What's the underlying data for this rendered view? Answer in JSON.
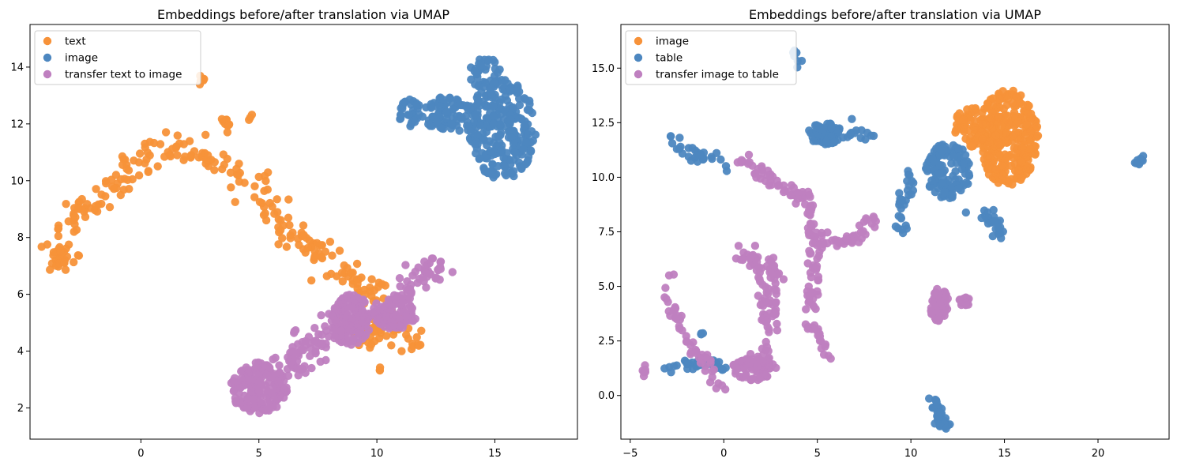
{
  "chart_data": [
    {
      "type": "scatter",
      "title": "Embeddings before/after translation via UMAP",
      "xlabel": "",
      "ylabel": "",
      "xlim": [
        -4.7,
        18.5
      ],
      "ylim": [
        0.9,
        15.5
      ],
      "xticks": [
        0,
        5,
        10,
        15
      ],
      "xtick_labels": [
        "0",
        "5",
        "10",
        "15"
      ],
      "yticks": [
        2,
        4,
        6,
        8,
        10,
        12,
        14
      ],
      "ytick_labels": [
        "2",
        "4",
        "6",
        "8",
        "10",
        "12",
        "14"
      ],
      "grid": false,
      "legend_position": "top-left",
      "series": [
        {
          "name": "text",
          "color": "#f79239",
          "clusters": [
            {
              "path": [
                [
                  -3.4,
                  7.2
                ],
                [
                  -3.2,
                  8.0
                ],
                [
                  -2.6,
                  8.9
                ],
                [
                  -1.8,
                  9.4
                ],
                [
                  -1.0,
                  9.7
                ],
                [
                  -0.3,
                  10.4
                ],
                [
                  0.4,
                  11.0
                ],
                [
                  1.2,
                  11.5
                ],
                [
                  2.0,
                  11.1
                ],
                [
                  3.0,
                  10.6
                ],
                [
                  4.0,
                  10.1
                ],
                [
                  5.0,
                  9.8
                ],
                [
                  5.6,
                  9.3
                ],
                [
                  6.0,
                  8.6
                ],
                [
                  6.6,
                  8.0
                ],
                [
                  7.2,
                  7.6
                ],
                [
                  8.0,
                  7.2
                ],
                [
                  8.8,
                  6.6
                ],
                [
                  9.5,
                  6.2
                ],
                [
                  10.3,
                  5.8
                ],
                [
                  10.8,
                  5.0
                ],
                [
                  11.4,
                  4.4
                ]
              ],
              "spread": 0.32,
              "n": 260
            },
            {
              "path": [
                [
                  -3.4,
                  6.8
                ],
                [
                  -3.3,
                  7.6
                ]
              ],
              "spread": 0.18,
              "n": 20
            },
            {
              "path": [
                [
                  3.4,
                  12.4
                ],
                [
                  3.8,
                  11.9
                ]
              ],
              "spread": 0.12,
              "n": 10
            },
            {
              "path": [
                [
                  2.5,
                  13.5
                ],
                [
                  2.6,
                  13.7
                ]
              ],
              "spread": 0.08,
              "n": 6
            },
            {
              "path": [
                [
                  4.6,
                  12.2
                ],
                [
                  4.6,
                  12.2
                ]
              ],
              "spread": 0.06,
              "n": 3
            },
            {
              "path": [
                [
                  8.4,
                  5.0
                ],
                [
                  9.6,
                  4.6
                ],
                [
                  10.4,
                  4.8
                ]
              ],
              "spread": 0.25,
              "n": 40
            },
            {
              "path": [
                [
                  10.1,
                  3.3
                ],
                [
                  10.1,
                  3.4
                ]
              ],
              "spread": 0.05,
              "n": 3
            },
            {
              "path": [
                [
                  11.7,
                  4.2
                ],
                [
                  11.8,
                  4.2
                ]
              ],
              "spread": 0.05,
              "n": 3
            }
          ]
        },
        {
          "name": "image",
          "color": "#4d87c0",
          "clusters": [
            {
              "blob": [
                15.3,
                11.8,
                1.45,
                1.75
              ],
              "n": 260
            },
            {
              "blob": [
                13.2,
                12.3,
                1.3,
                0.7
              ],
              "n": 80
            },
            {
              "blob": [
                11.4,
                12.4,
                0.5,
                0.5
              ],
              "n": 30
            },
            {
              "blob": [
                14.6,
                13.8,
                0.7,
                0.6
              ],
              "n": 40
            }
          ]
        },
        {
          "name": "transfer text to image",
          "color": "#bf80c0",
          "clusters": [
            {
              "blob": [
                5.0,
                2.7,
                1.2,
                0.9
              ],
              "n": 180
            },
            {
              "blob": [
                8.9,
                5.1,
                0.85,
                0.9
              ],
              "n": 150
            },
            {
              "blob": [
                10.7,
                5.3,
                1.0,
                0.55
              ],
              "n": 90
            },
            {
              "path": [
                [
                  6.0,
                  3.4
                ],
                [
                  7.0,
                  4.0
                ],
                [
                  8.0,
                  4.6
                ]
              ],
              "spread": 0.35,
              "n": 70
            },
            {
              "path": [
                [
                  11.0,
                  5.9
                ],
                [
                  11.7,
                  6.4
                ],
                [
                  12.3,
                  7.0
                ],
                [
                  12.8,
                  6.6
                ]
              ],
              "spread": 0.28,
              "n": 50
            }
          ]
        }
      ]
    },
    {
      "type": "scatter",
      "title": "Embeddings before/after translation via UMAP",
      "xlabel": "",
      "ylabel": "",
      "xlim": [
        -5.5,
        23.8
      ],
      "ylim": [
        -2.0,
        17.0
      ],
      "xticks": [
        -5,
        0,
        5,
        10,
        15,
        20
      ],
      "xtick_labels": [
        "−5",
        "0",
        "5",
        "10",
        "15",
        "20"
      ],
      "yticks": [
        0.0,
        2.5,
        5.0,
        7.5,
        10.0,
        12.5,
        15.0
      ],
      "ytick_labels": [
        "0.0",
        "2.5",
        "5.0",
        "7.5",
        "10.0",
        "12.5",
        "15.0"
      ],
      "grid": false,
      "legend_position": "top-left",
      "series": [
        {
          "name": "image",
          "color": "#f79239",
          "clusters": [
            {
              "blob": [
                15.2,
                11.8,
                1.6,
                2.2
              ],
              "n": 320
            },
            {
              "blob": [
                13.2,
                12.3,
                0.9,
                0.9
              ],
              "n": 60
            }
          ]
        },
        {
          "name": "table",
          "color": "#4d87c0",
          "clusters": [
            {
              "blob": [
                5.4,
                12.0,
                0.9,
                0.5
              ],
              "n": 70
            },
            {
              "path": [
                [
                  6.5,
                  12.0
                ],
                [
                  7.8,
                  11.9
                ]
              ],
              "spread": 0.18,
              "n": 15
            },
            {
              "path": [
                [
                  -2.8,
                  11.8
                ],
                [
                  -2.0,
                  11.2
                ],
                [
                  -1.0,
                  10.9
                ],
                [
                  0.1,
                  10.7
                ]
              ],
              "spread": 0.18,
              "n": 30
            },
            {
              "path": [
                [
                  3.8,
                  15.9
                ],
                [
                  3.8,
                  15.5
                ],
                [
                  4.2,
                  14.8
                ]
              ],
              "spread": 0.08,
              "n": 8
            },
            {
              "blob": [
                12.0,
                10.3,
                1.2,
                1.3
              ],
              "n": 130
            },
            {
              "path": [
                [
                  10.1,
                  10.5
                ],
                [
                  9.6,
                  9.0
                ],
                [
                  9.3,
                  7.9
                ],
                [
                  9.7,
                  7.7
                ]
              ],
              "spread": 0.18,
              "n": 30
            },
            {
              "path": [
                [
                  13.4,
                  8.6
                ],
                [
                  14.2,
                  8.0
                ],
                [
                  14.9,
                  7.5
                ]
              ],
              "spread": 0.2,
              "n": 25
            },
            {
              "path": [
                [
                  11.2,
                  -0.1
                ],
                [
                  11.5,
                  -0.7
                ],
                [
                  11.6,
                  -1.3
                ],
                [
                  12.0,
                  -1.3
                ]
              ],
              "spread": 0.14,
              "n": 40
            },
            {
              "path": [
                [
                  22.0,
                  10.4
                ],
                [
                  22.4,
                  10.8
                ]
              ],
              "spread": 0.1,
              "n": 12
            },
            {
              "path": [
                [
                  -3.1,
                  1.1
                ],
                [
                  -2.2,
                  1.5
                ],
                [
                  -1.5,
                  1.5
                ],
                [
                  -0.6,
                  1.6
                ],
                [
                  0.1,
                  1.1
                ]
              ],
              "spread": 0.12,
              "n": 40
            },
            {
              "path": [
                [
                  -1.2,
                  2.9
                ],
                [
                  -1.2,
                  2.8
                ]
              ],
              "spread": 0.05,
              "n": 3
            }
          ]
        },
        {
          "name": "transfer image to table",
          "color": "#bf80c0",
          "clusters": [
            {
              "path": [
                [
                  0.5,
                  11.0
                ],
                [
                  1.5,
                  10.5
                ],
                [
                  2.5,
                  10.0
                ],
                [
                  3.4,
                  9.5
                ],
                [
                  4.3,
                  9.0
                ],
                [
                  4.7,
                  8.2
                ],
                [
                  4.8,
                  7.0
                ],
                [
                  4.9,
                  6.0
                ],
                [
                  4.8,
                  5.0
                ],
                [
                  4.6,
                  4.0
                ]
              ],
              "spread": 0.18,
              "n": 110
            },
            {
              "path": [
                [
                  4.6,
                  7.5
                ],
                [
                  5.4,
                  7.0
                ],
                [
                  6.3,
                  7.0
                ],
                [
                  7.0,
                  7.3
                ],
                [
                  7.6,
                  7.8
                ],
                [
                  7.9,
                  8.2
                ]
              ],
              "spread": 0.2,
              "n": 45
            },
            {
              "path": [
                [
                  1.0,
                  6.5
                ],
                [
                  1.6,
                  6.3
                ],
                [
                  2.0,
                  5.8
                ],
                [
                  2.2,
                  5.0
                ],
                [
                  2.3,
                  4.0
                ],
                [
                  2.4,
                  3.0
                ],
                [
                  2.2,
                  2.0
                ],
                [
                  2.2,
                  1.0
                ]
              ],
              "spread": 0.22,
              "n": 80
            },
            {
              "path": [
                [
                  2.5,
                  6.2
                ],
                [
                  2.8,
                  5.5
                ],
                [
                  2.7,
                  4.5
                ],
                [
                  2.6,
                  3.5
                ]
              ],
              "spread": 0.15,
              "n": 25
            },
            {
              "blob": [
                1.6,
                1.2,
                1.2,
                0.5
              ],
              "n": 70
            },
            {
              "path": [
                [
                  -3.0,
                  5.5
                ],
                [
                  -3.0,
                  4.5
                ],
                [
                  -2.6,
                  3.8
                ],
                [
                  -2.4,
                  3.2
                ],
                [
                  -1.8,
                  2.2
                ],
                [
                  -1.0,
                  1.7
                ],
                [
                  -0.5,
                  1.0
                ],
                [
                  -0.2,
                  0.2
                ]
              ],
              "spread": 0.18,
              "n": 50
            },
            {
              "path": [
                [
                  -4.3,
                  0.9
                ],
                [
                  -4.1,
                  1.4
                ]
              ],
              "spread": 0.07,
              "n": 6
            },
            {
              "path": [
                [
                  4.4,
                  3.2
                ],
                [
                  5.0,
                  2.9
                ],
                [
                  5.3,
                  2.0
                ],
                [
                  5.7,
                  1.6
                ]
              ],
              "spread": 0.13,
              "n": 20
            },
            {
              "blob": [
                11.5,
                4.2,
                0.5,
                0.8
              ],
              "n": 45
            },
            {
              "blob": [
                12.9,
                4.3,
                0.35,
                0.2
              ],
              "n": 20
            }
          ]
        }
      ]
    }
  ]
}
